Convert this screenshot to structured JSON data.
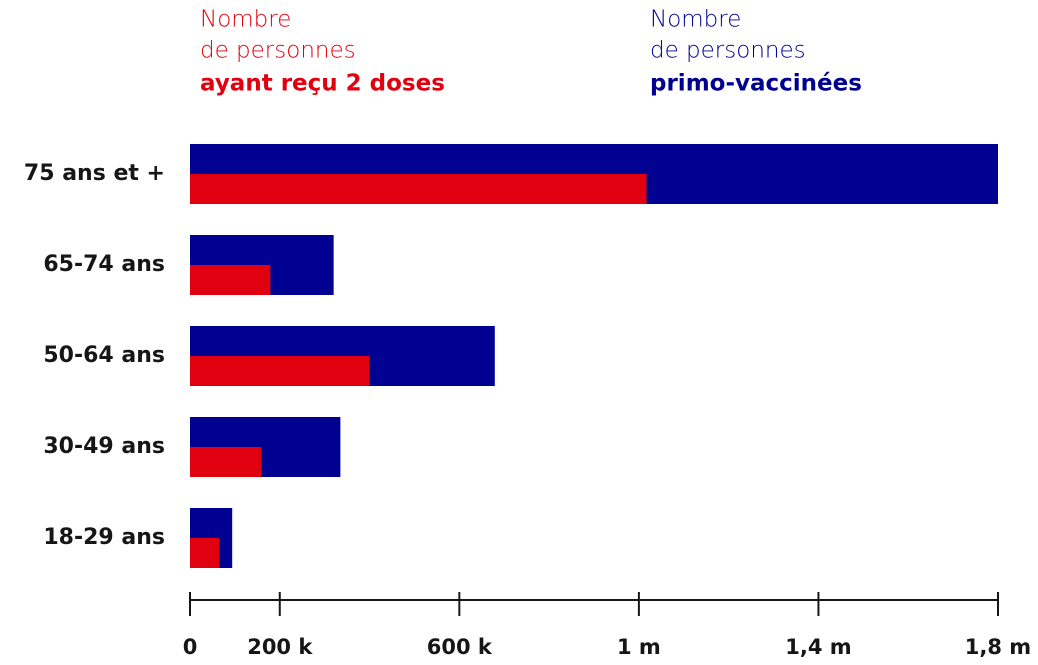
{
  "chart_data": {
    "type": "bar",
    "orientation": "horizontal",
    "overlap": true,
    "legend_heading": [
      "Nombre",
      "de personnes"
    ],
    "categories": [
      "75 ans et +",
      "65-74 ans",
      "50-64 ans",
      "30-49 ans",
      "18-29 ans"
    ],
    "series": [
      {
        "name": "ayant reçu 2 doses",
        "color": "#e1000f",
        "values": [
          1017000,
          179000,
          400000,
          159000,
          65000
        ]
      },
      {
        "name": "primo-vaccinées",
        "color": "#000091",
        "values": [
          1800000,
          320000,
          679000,
          335000,
          94000
        ]
      }
    ],
    "xlim": [
      0,
      1800000
    ],
    "xticks": [
      0,
      {
        "value": 200000,
        "label": "200 k"
      },
      {
        "value": 600000,
        "label": "600 k"
      },
      {
        "value": 1000000,
        "label": "1 m"
      },
      {
        "value": 1400000,
        "label": "1,4 m"
      },
      {
        "value": 1800000,
        "label": "1,8 m"
      }
    ]
  }
}
